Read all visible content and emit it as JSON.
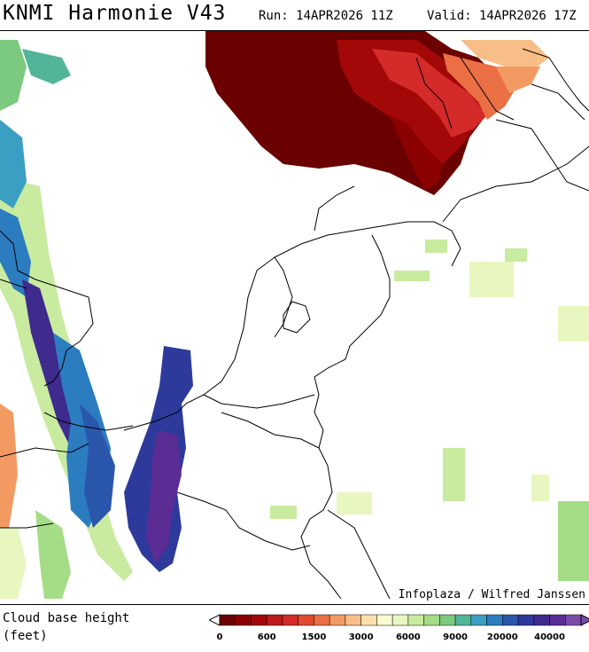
{
  "header": {
    "title": "KNMI Harmonie V43",
    "run": "Run: 14APR2026 11Z",
    "valid": "Valid: 14APR2026 17Z"
  },
  "credit": "Infoplaza / Wilfred Janssen",
  "legend": {
    "label_line1": "Cloud base height",
    "label_line2": "(feet)",
    "ticks": [
      "0",
      "600",
      "1500",
      "3000",
      "6000",
      "9000",
      "20000",
      "40000"
    ],
    "colors": [
      "#6b0000",
      "#8b0000",
      "#a30808",
      "#bd1a1a",
      "#d42a2a",
      "#e04a2f",
      "#ea6f45",
      "#f39a62",
      "#f8be88",
      "#fbe0ad",
      "#fdfbd0",
      "#e8f6c0",
      "#c8eba0",
      "#a5dc86",
      "#7cc980",
      "#52b59a",
      "#3b9ec3",
      "#2c7cc0",
      "#2a56ac",
      "#2d3a9c",
      "#3f2a8e",
      "#5a2c94",
      "#7a4aa6"
    ]
  },
  "map_layers": [
    {
      "name": "Low cloud base (red) over North Sea / Wadden",
      "color": "#6b0000"
    },
    {
      "name": "High cloud base (blue/purple) over England and Belgium coast",
      "color": "#2d3a9c"
    },
    {
      "name": "Scattered mid cloud (green)",
      "color": "#a5dc86"
    }
  ]
}
